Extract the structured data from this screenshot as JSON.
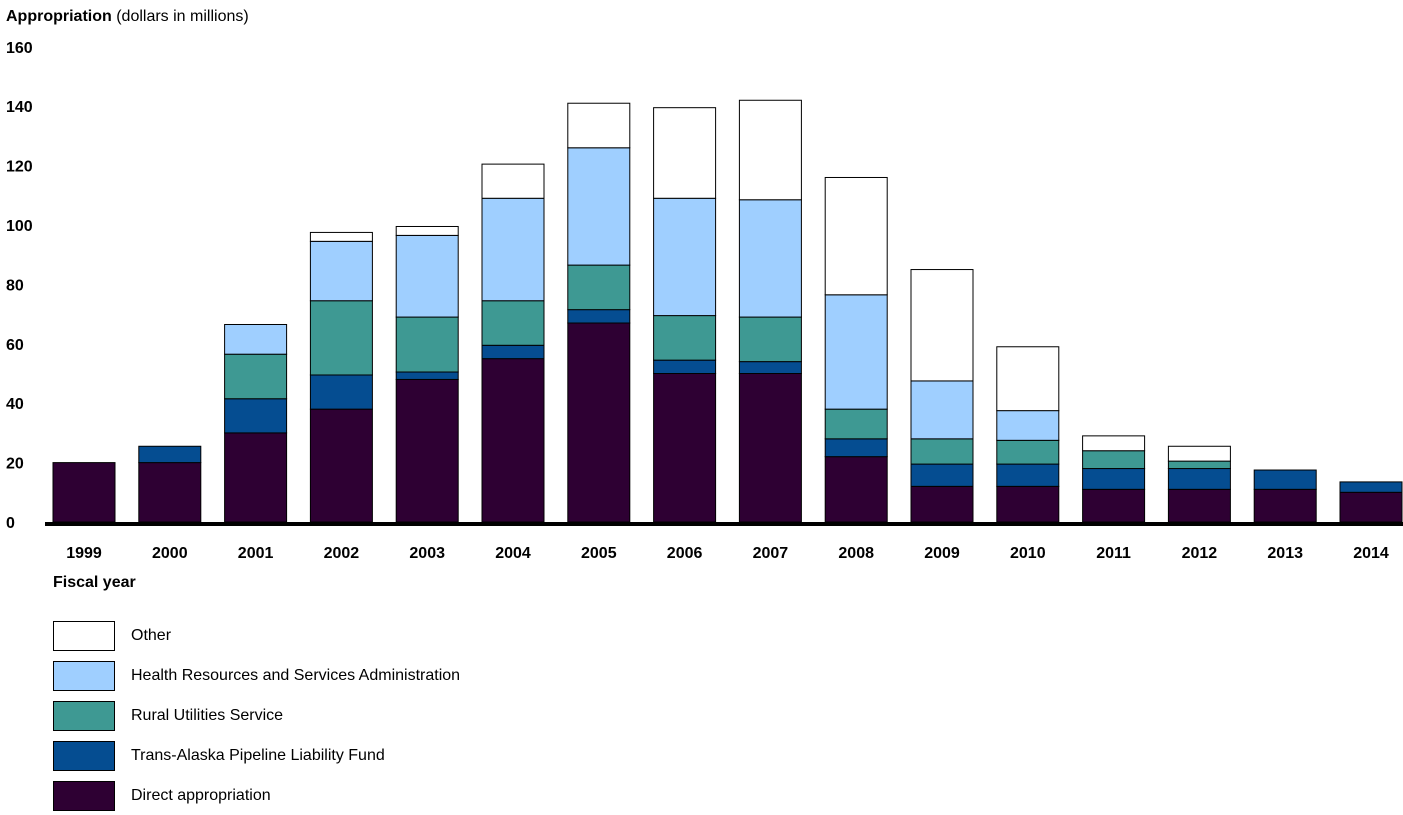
{
  "chart_data": {
    "type": "bar",
    "stacked": true,
    "ylabel_bold": "Appropriation",
    "ylabel_rest": " (dollars in millions)",
    "xlabel": "Fiscal year",
    "ylim": [
      0,
      160
    ],
    "yticks": [
      "0",
      "20",
      "40",
      "60",
      "80",
      "100",
      "120",
      "140",
      "160"
    ],
    "grid": false,
    "legend_position": "bottom-left",
    "categories": [
      "1999",
      "2000",
      "2001",
      "2002",
      "2003",
      "2004",
      "2005",
      "2006",
      "2007",
      "2008",
      "2009",
      "2010",
      "2011",
      "2012",
      "2013",
      "2014"
    ],
    "series": [
      {
        "name": "Direct appropriation",
        "color": "#2e0033",
        "values": [
          20,
          20,
          30,
          38,
          48,
          55,
          67,
          50,
          50,
          22,
          12,
          12,
          11,
          11,
          11,
          10
        ]
      },
      {
        "name": "Trans-Alaska Pipeline Liability Fund",
        "color": "#054d91",
        "values": [
          0,
          5.5,
          11.5,
          11.5,
          2.5,
          4.5,
          4.5,
          4.5,
          4,
          6,
          7.5,
          7.5,
          7,
          7,
          6.5,
          3.5
        ]
      },
      {
        "name": "Rural Utilities Service",
        "color": "#3e9993",
        "values": [
          0,
          0,
          15,
          25,
          18.5,
          15,
          15,
          15,
          15,
          10,
          8.5,
          8,
          6,
          2.5,
          0,
          0
        ]
      },
      {
        "name": "Health Resources and Services Administration",
        "color": "#9fcfff",
        "values": [
          0,
          0,
          10,
          20,
          27.5,
          34.5,
          39.5,
          39.5,
          39.5,
          38.5,
          19.5,
          10,
          0,
          0,
          0,
          0
        ]
      },
      {
        "name": "Other",
        "color": "#ffffff",
        "values": [
          0,
          0,
          0,
          3,
          3,
          11.5,
          15,
          30.5,
          33.5,
          39.5,
          37.5,
          21.5,
          5,
          5,
          0,
          0
        ]
      }
    ]
  }
}
